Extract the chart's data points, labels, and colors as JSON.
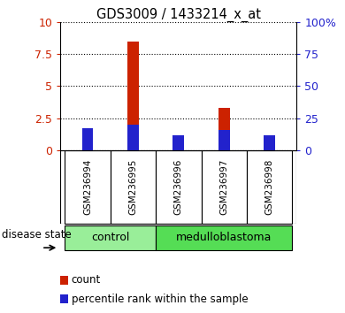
{
  "title": "GDS3009 / 1433214_x_at",
  "samples": [
    "GSM236994",
    "GSM236995",
    "GSM236996",
    "GSM236997",
    "GSM236998"
  ],
  "count_values": [
    1.4,
    8.5,
    1.1,
    3.3,
    1.1
  ],
  "percentile_values": [
    17.0,
    20.0,
    12.0,
    16.0,
    12.0
  ],
  "groups": [
    {
      "label": "control",
      "samples": [
        "GSM236994",
        "GSM236995"
      ],
      "color": "#99ee99"
    },
    {
      "label": "medulloblastoma",
      "samples": [
        "GSM236996",
        "GSM236997",
        "GSM236998"
      ],
      "color": "#55dd55"
    }
  ],
  "ylim_left": [
    0,
    10
  ],
  "ylim_right": [
    0,
    100
  ],
  "yticks_left": [
    0,
    2.5,
    5,
    7.5,
    10
  ],
  "yticks_right": [
    0,
    25,
    50,
    75,
    100
  ],
  "ytick_labels_right": [
    "0",
    "25",
    "50",
    "75",
    "100%"
  ],
  "bar_color_count": "#cc2200",
  "bar_color_percentile": "#2222cc",
  "bar_width": 0.25,
  "background_color": "#ffffff",
  "label_area_bg": "#cccccc",
  "disease_state_label": "disease state",
  "legend_count": "count",
  "legend_percentile": "percentile rank within the sample"
}
